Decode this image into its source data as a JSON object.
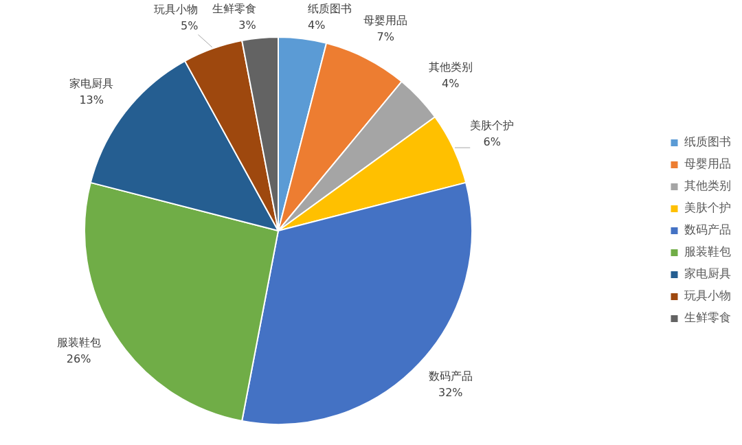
{
  "chart_data": {
    "type": "pie",
    "categories": [
      "纸质图书",
      "母婴用品",
      "其他类别",
      "美肤个护",
      "数码产品",
      "服装鞋包",
      "家电厨具",
      "玩具小物",
      "生鲜零食"
    ],
    "values": [
      4,
      7,
      4,
      6,
      32,
      26,
      13,
      5,
      3
    ],
    "colors": [
      "#5b9bd5",
      "#ed7d31",
      "#a5a5a5",
      "#ffc000",
      "#4472c4",
      "#70ad47",
      "#255e91",
      "#9e480e",
      "#636363"
    ],
    "value_labels": [
      "4%",
      "7%",
      "4%",
      "6%",
      "32%",
      "26%",
      "13%",
      "5%",
      "3%"
    ],
    "legend": "right"
  }
}
